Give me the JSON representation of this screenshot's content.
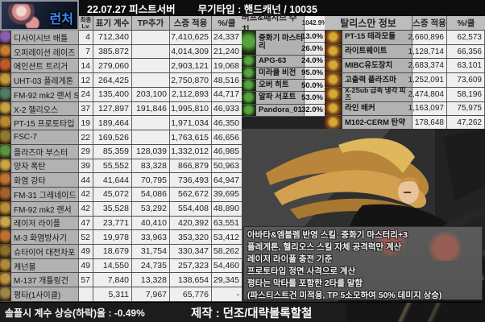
{
  "header": {
    "class_label": "런처",
    "title_date_server": "22.07.27 피스트서버",
    "title_weapon": "무기타입 : 핸드캐넌 / 10035"
  },
  "skill_table": {
    "columns": {
      "lv_top": "최종",
      "lv_bottom": "Lv.",
      "coef": "표기 계수",
      "tp": "TP추가",
      "applied": "스증 적용",
      "per_cd": "%/쿨"
    },
    "rows": [
      {
        "name": "디사이시브 배틀",
        "lv": "4",
        "coef": "712,340",
        "tp": "",
        "applied": "7,410,625",
        "per_cd": "24,337",
        "icon": "#8a5fae"
      },
      {
        "name": "오퍼레이션 레이즈",
        "lv": "7",
        "coef": "385,872",
        "tp": "",
        "applied": "4,014,309",
        "per_cd": "21,240",
        "icon": "#c77e2e"
      },
      {
        "name": "에인션트 트리거",
        "lv": "14",
        "coef": "279,060",
        "tp": "",
        "applied": "2,903,121",
        "per_cd": "19,068",
        "icon": "#c05a28"
      },
      {
        "name": "UHT-03 플레게톤",
        "lv": "12",
        "coef": "264,425",
        "tp": "",
        "applied": "2,750,870",
        "per_cd": "48,516",
        "icon": "#c59a3a"
      },
      {
        "name": "FM-92 mk2 랜서 SW",
        "lv": "24",
        "coef": "135,400",
        "tp": "203,100",
        "applied": "2,112,893",
        "per_cd": "44,717",
        "icon": "#4e7f66"
      },
      {
        "name": "X-2 헬리오스",
        "lv": "37",
        "coef": "127,897",
        "tp": "191,846",
        "applied": "1,995,810",
        "per_cd": "46,933",
        "icon": "#caa23c"
      },
      {
        "name": "PT-15 프로토타입",
        "lv": "19",
        "coef": "189,464",
        "tp": "",
        "applied": "1,971,034",
        "per_cd": "46,350",
        "icon": "#ba8a32"
      },
      {
        "name": "FSC-7",
        "lv": "22",
        "coef": "169,526",
        "tp": "",
        "applied": "1,763,615",
        "per_cd": "46,656",
        "icon": "#8f7a2c"
      },
      {
        "name": "플라즈마 부스터",
        "lv": "29",
        "coef": "85,359",
        "tp": "128,039",
        "applied": "1,332,012",
        "per_cd": "46,985",
        "icon": "#58953f"
      },
      {
        "name": "양자 폭탄",
        "lv": "39",
        "coef": "55,552",
        "tp": "83,328",
        "applied": "866,879",
        "per_cd": "50,963",
        "icon": "#c9a546"
      },
      {
        "name": "화염 강타",
        "lv": "44",
        "coef": "41,644",
        "tp": "70,795",
        "applied": "736,493",
        "per_cd": "64,947",
        "icon": "#c2722e"
      },
      {
        "name": "FM-31 그레네이드 런처",
        "lv": "42",
        "coef": "45,072",
        "tp": "54,086",
        "applied": "562,672",
        "per_cd": "39,695",
        "icon": "#a3622a"
      },
      {
        "name": "FM-92 mk2 랜서",
        "lv": "42",
        "coef": "35,528",
        "tp": "53,292",
        "applied": "554,408",
        "per_cd": "48,890",
        "icon": "#b98e36"
      },
      {
        "name": "레이저 라이플",
        "lv": "47",
        "coef": "23,771",
        "tp": "40,410",
        "applied": "420,392",
        "per_cd": "63,551",
        "icon": "#caa84e"
      },
      {
        "name": "M-3 화염방사기",
        "lv": "52",
        "coef": "19,978",
        "tp": "33,963",
        "applied": "353,320",
        "per_cd": "53,412",
        "icon": "#c07034"
      },
      {
        "name": "슈타이어 대전차포",
        "lv": "49",
        "coef": "18,679",
        "tp": "31,754",
        "applied": "330,347",
        "per_cd": "58,262",
        "icon": "#8a6e2c"
      },
      {
        "name": "캐넌볼",
        "lv": "49",
        "coef": "14,550",
        "tp": "24,735",
        "applied": "257,323",
        "per_cd": "54,460",
        "icon": "#b08c3a"
      },
      {
        "name": "M-137 개틀링건",
        "lv": "57",
        "coef": "7,840",
        "tp": "13,328",
        "applied": "138,654",
        "per_cd": "29,345",
        "icon": "#bd9440"
      },
      {
        "name": "평타(1사이클)",
        "lv": "",
        "coef": "5,311",
        "tp": "7,967",
        "applied": "65,776",
        "per_cd": "-",
        "icon": "#9c8648"
      }
    ]
  },
  "buff_panel": {
    "title": "버프&패시브 수치",
    "total": "1042.9%",
    "items": [
      {
        "name": "중화기 마스터리",
        "values": [
          "13.0%",
          "26.0%"
        ]
      },
      {
        "name": "APG-63",
        "values": [
          "24.0%"
        ]
      },
      {
        "name": "미라클 비전",
        "values": [
          "95.0%"
        ]
      },
      {
        "name": "오버 히트",
        "values": [
          "50.0%"
        ]
      },
      {
        "name": "알파 서포트",
        "values": [
          "53.0%"
        ]
      },
      {
        "name": "Pandora_01",
        "values": [
          "32.0%"
        ]
      }
    ]
  },
  "talisman_panel": {
    "title": "탈리스만 정보",
    "col_applied": "스증 적용",
    "col_per_cd": "%/쿨",
    "rows": [
      {
        "name": "PT-15 테라모듈",
        "applied": "2,660,896",
        "per_cd": "62,573"
      },
      {
        "name": "라이트웨이트",
        "applied": "1,128,714",
        "per_cd": "66,356"
      },
      {
        "name": "MIBC유도장치",
        "applied": "2,683,374",
        "per_cd": "63,101"
      },
      {
        "name": "고출력 플라즈마",
        "applied": "1,252,091",
        "per_cd": "73,609"
      },
      {
        "name": "X-2Sub 급속 냉각 피즈",
        "applied": "2,474,804",
        "per_cd": "58,196"
      },
      {
        "name": "라인 배커",
        "applied": "1,163,097",
        "per_cd": "75,975"
      },
      {
        "name": "M102-CERM 탄약",
        "applied": "178,648",
        "per_cd": "47,262"
      }
    ]
  },
  "notes": [
    "아바타&엠블렘 반영 스킬: 중화기 마스터리+3",
    "플레게톤, 헬리오스 스킬 자체 공격력만 계산",
    "레이저 라이플 충전 기준",
    "프로토타입 정면 사격으로 계산",
    "평타는 막타를 포함한 2타를 말함",
    "(파스티스트건 미적용, TP 5소모하여 50% 데미지 상승)"
  ],
  "footer": {
    "left": "솔플시 계수 상승(하락)율 : -0.49%",
    "right": "제작 : 던조/대략볼록할철"
  },
  "colors": {
    "accent_blue": "#3d8bff",
    "cell_gray": "#b2b2b2",
    "cell_white": "#efefef",
    "buff_icon_green": "#57a33e",
    "talisman_icon_gold": "#d8a838"
  }
}
